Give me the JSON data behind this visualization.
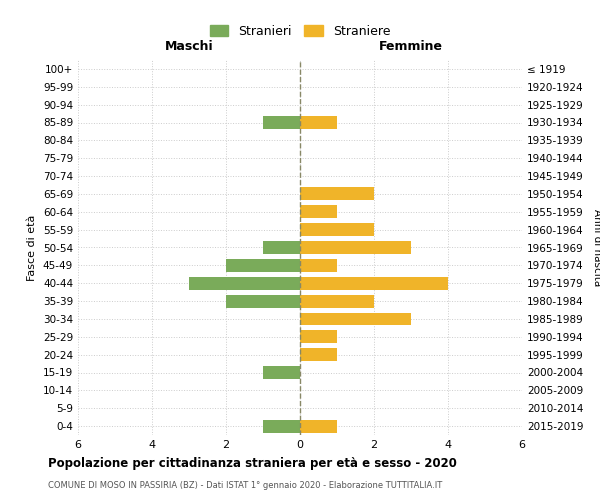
{
  "age_groups": [
    "100+",
    "95-99",
    "90-94",
    "85-89",
    "80-84",
    "75-79",
    "70-74",
    "65-69",
    "60-64",
    "55-59",
    "50-54",
    "45-49",
    "40-44",
    "35-39",
    "30-34",
    "25-29",
    "20-24",
    "15-19",
    "10-14",
    "5-9",
    "0-4"
  ],
  "birth_years": [
    "≤ 1919",
    "1920-1924",
    "1925-1929",
    "1930-1934",
    "1935-1939",
    "1940-1944",
    "1945-1949",
    "1950-1954",
    "1955-1959",
    "1960-1964",
    "1965-1969",
    "1970-1974",
    "1975-1979",
    "1980-1984",
    "1985-1989",
    "1990-1994",
    "1995-1999",
    "2000-2004",
    "2005-2009",
    "2010-2014",
    "2015-2019"
  ],
  "maschi": [
    0,
    0,
    0,
    1,
    0,
    0,
    0,
    0,
    0,
    0,
    1,
    2,
    3,
    2,
    0,
    0,
    0,
    1,
    0,
    0,
    1
  ],
  "femmine": [
    0,
    0,
    0,
    1,
    0,
    0,
    0,
    2,
    1,
    2,
    3,
    1,
    4,
    2,
    3,
    1,
    1,
    0,
    0,
    0,
    1
  ],
  "maschi_color": "#7aab5a",
  "femmine_color": "#f0b429",
  "background_color": "#ffffff",
  "grid_color": "#cccccc",
  "center_line_color": "#888866",
  "title": "Popolazione per cittadinanza straniera per età e sesso - 2020",
  "subtitle": "COMUNE DI MOSO IN PASSIRIA (BZ) - Dati ISTAT 1° gennaio 2020 - Elaborazione TUTTITALIA.IT",
  "xlabel_left": "Maschi",
  "xlabel_right": "Femmine",
  "ylabel_left": "Fasce di età",
  "ylabel_right": "Anni di nascita",
  "legend_maschi": "Stranieri",
  "legend_femmine": "Straniere",
  "xlim": 6
}
